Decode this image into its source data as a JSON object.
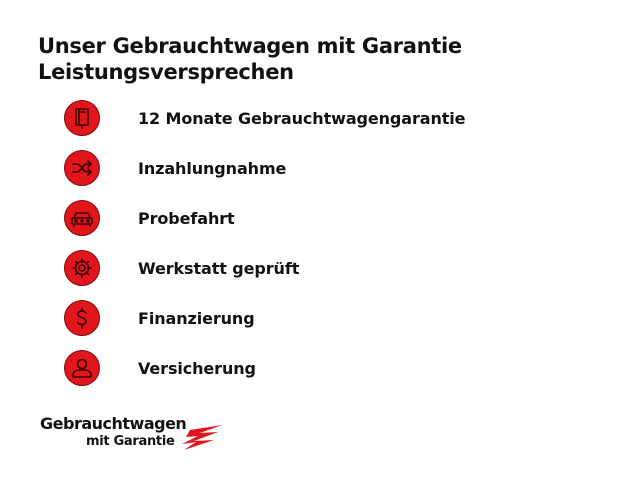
{
  "header": {
    "title_line1": "Unser Gebrauchtwagen mit Garantie",
    "title_line2": "Leistungsversprechen"
  },
  "accent_color": "#e3151c",
  "items": [
    {
      "icon": "book-icon",
      "label": "12 Monate Gebrauchtwagengarantie"
    },
    {
      "icon": "shuffle-icon",
      "label": "Inzahlungnahme"
    },
    {
      "icon": "car-icon",
      "label": "Probefahrt"
    },
    {
      "icon": "gear-icon",
      "label": "Werkstatt geprüft"
    },
    {
      "icon": "dollar-icon",
      "label": "Finanzierung"
    },
    {
      "icon": "person-icon",
      "label": "Versicherung"
    }
  ],
  "logo": {
    "line1": "Gebrauchtwagen",
    "line2": "mit Garantie"
  }
}
